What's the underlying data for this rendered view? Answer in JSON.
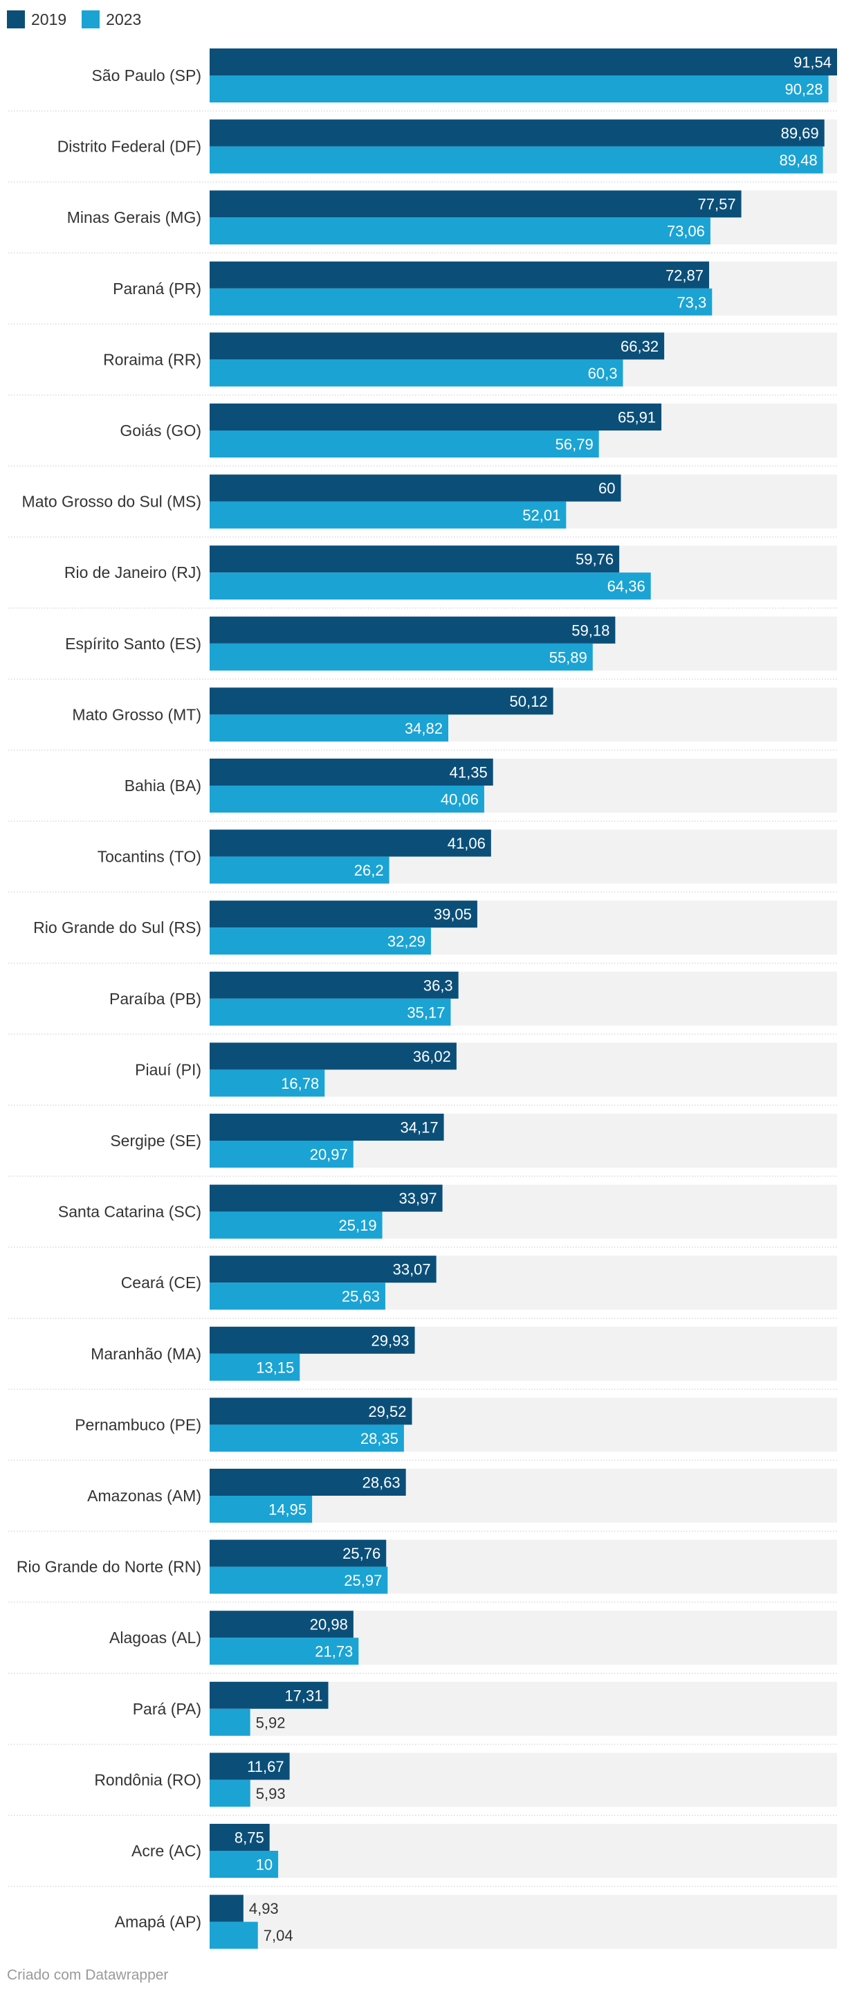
{
  "chart_data": {
    "type": "bar",
    "orientation": "horizontal",
    "categories": [
      "São Paulo (SP)",
      "Distrito Federal (DF)",
      "Minas Gerais (MG)",
      "Paraná (PR)",
      "Roraima (RR)",
      "Goiás (GO)",
      "Mato Grosso do Sul (MS)",
      "Rio de Janeiro (RJ)",
      "Espírito Santo (ES)",
      "Mato Grosso (MT)",
      "Bahia (BA)",
      "Tocantins (TO)",
      "Rio Grande do Sul (RS)",
      "Paraíba (PB)",
      "Piauí (PI)",
      "Sergipe (SE)",
      "Santa Catarina (SC)",
      "Ceará (CE)",
      "Maranhão (MA)",
      "Pernambuco (PE)",
      "Amazonas (AM)",
      "Rio Grande do Norte (RN)",
      "Alagoas (AL)",
      "Pará (PA)",
      "Rondônia (RO)",
      "Acre (AC)",
      "Amapá (AP)"
    ],
    "series": [
      {
        "name": "2019",
        "color": "#0b4f79",
        "values": [
          91.54,
          89.69,
          77.57,
          72.87,
          66.32,
          65.91,
          60,
          59.76,
          59.18,
          50.12,
          41.35,
          41.06,
          39.05,
          36.3,
          36.02,
          34.17,
          33.97,
          33.07,
          29.93,
          29.52,
          28.63,
          25.76,
          20.98,
          17.31,
          11.67,
          8.75,
          4.93
        ],
        "labels": [
          "91,54",
          "89,69",
          "77,57",
          "72,87",
          "66,32",
          "65,91",
          "60",
          "59,76",
          "59,18",
          "50,12",
          "41,35",
          "41,06",
          "39,05",
          "36,3",
          "36,02",
          "34,17",
          "33,97",
          "33,07",
          "29,93",
          "29,52",
          "28,63",
          "25,76",
          "20,98",
          "17,31",
          "11,67",
          "8,75",
          "4,93"
        ]
      },
      {
        "name": "2023",
        "color": "#1ba3d4",
        "values": [
          90.28,
          89.48,
          73.06,
          73.3,
          60.3,
          56.79,
          52.01,
          64.36,
          55.89,
          34.82,
          40.06,
          26.2,
          32.29,
          35.17,
          16.78,
          20.97,
          25.19,
          25.63,
          13.15,
          28.35,
          14.95,
          25.97,
          21.73,
          5.92,
          5.93,
          10,
          7.04
        ],
        "labels": [
          "90,28",
          "89,48",
          "73,06",
          "73,3",
          "60,3",
          "56,79",
          "52,01",
          "64,36",
          "55,89",
          "34,82",
          "40,06",
          "26,2",
          "32,29",
          "35,17",
          "16,78",
          "20,97",
          "25,19",
          "25,63",
          "13,15",
          "28,35",
          "14,95",
          "25,97",
          "21,73",
          "5,92",
          "5,93",
          "10",
          "7,04"
        ]
      }
    ],
    "xlim": [
      0,
      91.54
    ],
    "background_track_color": "#f2f2f2",
    "legend_position": "top-left"
  },
  "footer": {
    "credit": "Criado com Datawrapper"
  }
}
